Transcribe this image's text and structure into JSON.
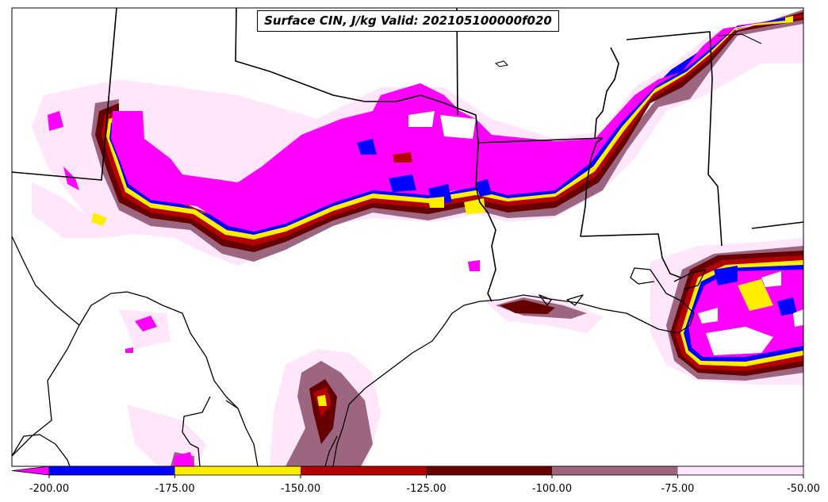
{
  "title": "Surface CIN, J/kg Valid: 202105100000f020",
  "colorbar": {
    "bins": [
      {
        "color": "#0000ff",
        "from": -200,
        "to": -175
      },
      {
        "color": "#ffee00",
        "from": -175,
        "to": -150
      },
      {
        "color": "#b30000",
        "from": -150,
        "to": -125
      },
      {
        "color": "#660000",
        "from": -125,
        "to": -100
      },
      {
        "color": "#9c6680",
        "from": -100,
        "to": -75
      },
      {
        "color": "#ffe6fa",
        "from": -75,
        "to": -50
      }
    ],
    "extend_color": "#ff00ff",
    "ticks": [
      "-200.00",
      "-175.00",
      "-150.00",
      "-125.00",
      "-100.00",
      "-75.00",
      "-50.00"
    ]
  },
  "colors": {
    "magenta": "#ff00ff",
    "blue": "#0000ff",
    "yellow": "#ffee00",
    "red": "#b30000",
    "darkred": "#660000",
    "mauve": "#9c6680",
    "pink": "#ffe6fa",
    "border": "#000000"
  }
}
